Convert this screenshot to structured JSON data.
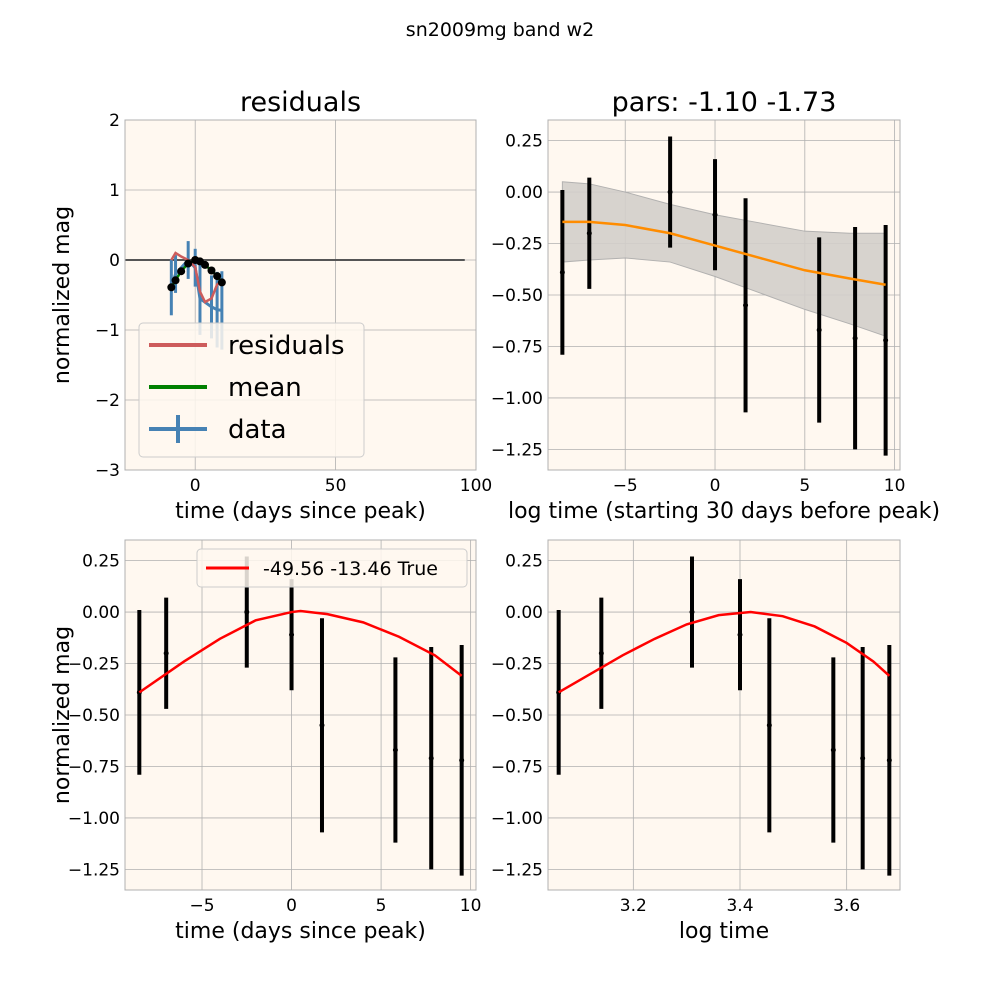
{
  "figure_title": "sn2009mg band w2",
  "chart_data": [
    {
      "type": "line",
      "title": "residuals",
      "xlabel": "time (days since peak)",
      "ylabel": "normalized mag",
      "xlim": [
        -25,
        100
      ],
      "ylim": [
        -3,
        2
      ],
      "xticks": [
        0,
        50,
        100
      ],
      "yticks": [
        -3,
        -2,
        -1,
        0,
        1,
        2
      ],
      "xtick_labels": [
        "0",
        "50",
        "100"
      ],
      "ytick_labels": [
        "−3",
        "−2",
        "−1",
        "0",
        "1",
        "2"
      ],
      "grid": true,
      "legend": {
        "placement": "lower-left",
        "entries": [
          {
            "label": "residuals",
            "color": "#cd5c5c"
          },
          {
            "label": "mean",
            "color": "#008000"
          },
          {
            "label": "data",
            "color": "#4682b4"
          }
        ]
      },
      "zero_line": {
        "x": [
          -25,
          96
        ],
        "y": 0,
        "color": "#555555"
      },
      "series": [
        {
          "name": "data",
          "color": "#4682b4",
          "x": [
            -8.5,
            -7.0,
            -2.5,
            0.0,
            1.7,
            5.8,
            7.8,
            9.5
          ],
          "y": [
            -0.39,
            -0.2,
            0.0,
            -0.11,
            -0.55,
            -0.67,
            -0.71,
            -0.72
          ],
          "yerr": [
            0.4,
            0.27,
            0.27,
            0.27,
            0.52,
            0.45,
            0.54,
            0.56
          ]
        },
        {
          "name": "residuals",
          "color": "#cd5c5c",
          "x": [
            -8.5,
            -7.0,
            -5.0,
            -2.5,
            0.0,
            1.7,
            3.5,
            5.8,
            7.8,
            9.5
          ],
          "y": [
            0.0,
            0.1,
            0.05,
            0.0,
            -0.1,
            -0.45,
            -0.6,
            -0.55,
            -0.35,
            -0.3
          ]
        },
        {
          "name": "mean",
          "color": "#008000",
          "x": [
            -8.5,
            -7.0,
            -5.0,
            -2.5,
            0.0,
            1.7,
            3.5,
            5.8,
            7.8,
            9.5
          ],
          "y": [
            -0.39,
            -0.29,
            -0.16,
            -0.05,
            0.0,
            -0.02,
            -0.07,
            -0.15,
            -0.23,
            -0.32
          ]
        }
      ]
    },
    {
      "type": "line",
      "title": "pars: -1.10 -1.73",
      "xlabel": "log time (starting 30 days before peak)",
      "ylabel": "",
      "xlim": [
        -9.3,
        10.3
      ],
      "ylim": [
        -1.35,
        0.35
      ],
      "xticks": [
        -5,
        0,
        5,
        10
      ],
      "yticks": [
        -1.25,
        -1.0,
        -0.75,
        -0.5,
        -0.25,
        0.0,
        0.25
      ],
      "xtick_labels": [
        "−5",
        "0",
        "5",
        "10"
      ],
      "ytick_labels": [
        "−1.25",
        "−1.00",
        "−0.75",
        "−0.50",
        "−0.25",
        "0.00",
        "0.25"
      ],
      "grid": true,
      "band_color": "#d3cfcb",
      "series": [
        {
          "name": "data",
          "color": "#000000",
          "x": [
            -8.5,
            -7.0,
            -2.5,
            0.0,
            1.7,
            5.8,
            7.8,
            9.5
          ],
          "y": [
            -0.39,
            -0.2,
            0.0,
            -0.11,
            -0.55,
            -0.67,
            -0.71,
            -0.72
          ],
          "yerr": [
            0.4,
            0.27,
            0.27,
            0.27,
            0.52,
            0.45,
            0.54,
            0.56
          ]
        },
        {
          "name": "gp-mean",
          "color": "#ff8c00",
          "x": [
            -8.5,
            -7.0,
            -5.0,
            -2.5,
            0.0,
            2.5,
            5.0,
            7.5,
            9.5
          ],
          "y": [
            -0.145,
            -0.145,
            -0.16,
            -0.2,
            -0.26,
            -0.32,
            -0.38,
            -0.42,
            -0.45
          ],
          "upper": [
            0.05,
            0.04,
            0.0,
            -0.06,
            -0.11,
            -0.15,
            -0.19,
            -0.2,
            -0.2
          ],
          "lower": [
            -0.34,
            -0.33,
            -0.32,
            -0.34,
            -0.41,
            -0.49,
            -0.57,
            -0.64,
            -0.7
          ]
        }
      ]
    },
    {
      "type": "line",
      "title": "",
      "xlabel": "time (days since peak)",
      "ylabel": "normalized mag",
      "xlim": [
        -9.3,
        10.3
      ],
      "ylim": [
        -1.35,
        0.35
      ],
      "xticks": [
        -5,
        0,
        5,
        10
      ],
      "yticks": [
        -1.25,
        -1.0,
        -0.75,
        -0.5,
        -0.25,
        0.0,
        0.25
      ],
      "xtick_labels": [
        "−5",
        "0",
        "5",
        "10"
      ],
      "ytick_labels": [
        "−1.25",
        "−1.00",
        "−0.75",
        "−0.50",
        "−0.25",
        "0.00",
        "0.25"
      ],
      "grid": true,
      "legend": {
        "placement": "upper-right",
        "entries": [
          {
            "label": "-49.56 -13.46 True",
            "color": "#ff0000"
          }
        ]
      },
      "series": [
        {
          "name": "data",
          "color": "#000000",
          "x": [
            -8.5,
            -7.0,
            -2.5,
            0.0,
            1.7,
            5.8,
            7.8,
            9.5
          ],
          "y": [
            -0.39,
            -0.2,
            0.0,
            -0.11,
            -0.55,
            -0.67,
            -0.71,
            -0.72
          ],
          "yerr": [
            0.4,
            0.27,
            0.27,
            0.27,
            0.52,
            0.45,
            0.54,
            0.56
          ]
        },
        {
          "name": "-49.56 -13.46 True",
          "color": "#ff0000",
          "x": [
            -8.5,
            -6.0,
            -4.0,
            -2.0,
            0.0,
            0.5,
            2.0,
            4.0,
            6.0,
            8.0,
            9.5
          ],
          "y": [
            -0.39,
            -0.24,
            -0.13,
            -0.04,
            0.0,
            0.005,
            -0.01,
            -0.05,
            -0.12,
            -0.21,
            -0.31
          ]
        }
      ]
    },
    {
      "type": "line",
      "title": "",
      "xlabel": "log time",
      "ylabel": "",
      "xlim": [
        3.04,
        3.7
      ],
      "ylim": [
        -1.35,
        0.35
      ],
      "xticks": [
        3.2,
        3.4,
        3.6
      ],
      "yticks": [
        -1.25,
        -1.0,
        -0.75,
        -0.5,
        -0.25,
        0.0,
        0.25
      ],
      "xtick_labels": [
        "3.2",
        "3.4",
        "3.6"
      ],
      "ytick_labels": [
        "−1.25",
        "−1.00",
        "−0.75",
        "−0.50",
        "−0.25",
        "0.00",
        "0.25"
      ],
      "grid": true,
      "series": [
        {
          "name": "data",
          "color": "#000000",
          "x": [
            3.06,
            3.14,
            3.31,
            3.4,
            3.455,
            3.575,
            3.63,
            3.68
          ],
          "y": [
            -0.39,
            -0.2,
            0.0,
            -0.11,
            -0.55,
            -0.67,
            -0.71,
            -0.72
          ],
          "yerr": [
            0.4,
            0.27,
            0.27,
            0.27,
            0.52,
            0.45,
            0.54,
            0.56
          ]
        },
        {
          "name": "fit",
          "color": "#ff0000",
          "x": [
            3.06,
            3.12,
            3.18,
            3.24,
            3.3,
            3.36,
            3.42,
            3.48,
            3.54,
            3.6,
            3.65,
            3.68
          ],
          "y": [
            -0.39,
            -0.3,
            -0.21,
            -0.13,
            -0.06,
            -0.015,
            0.0,
            -0.02,
            -0.07,
            -0.15,
            -0.24,
            -0.31
          ]
        }
      ]
    }
  ]
}
